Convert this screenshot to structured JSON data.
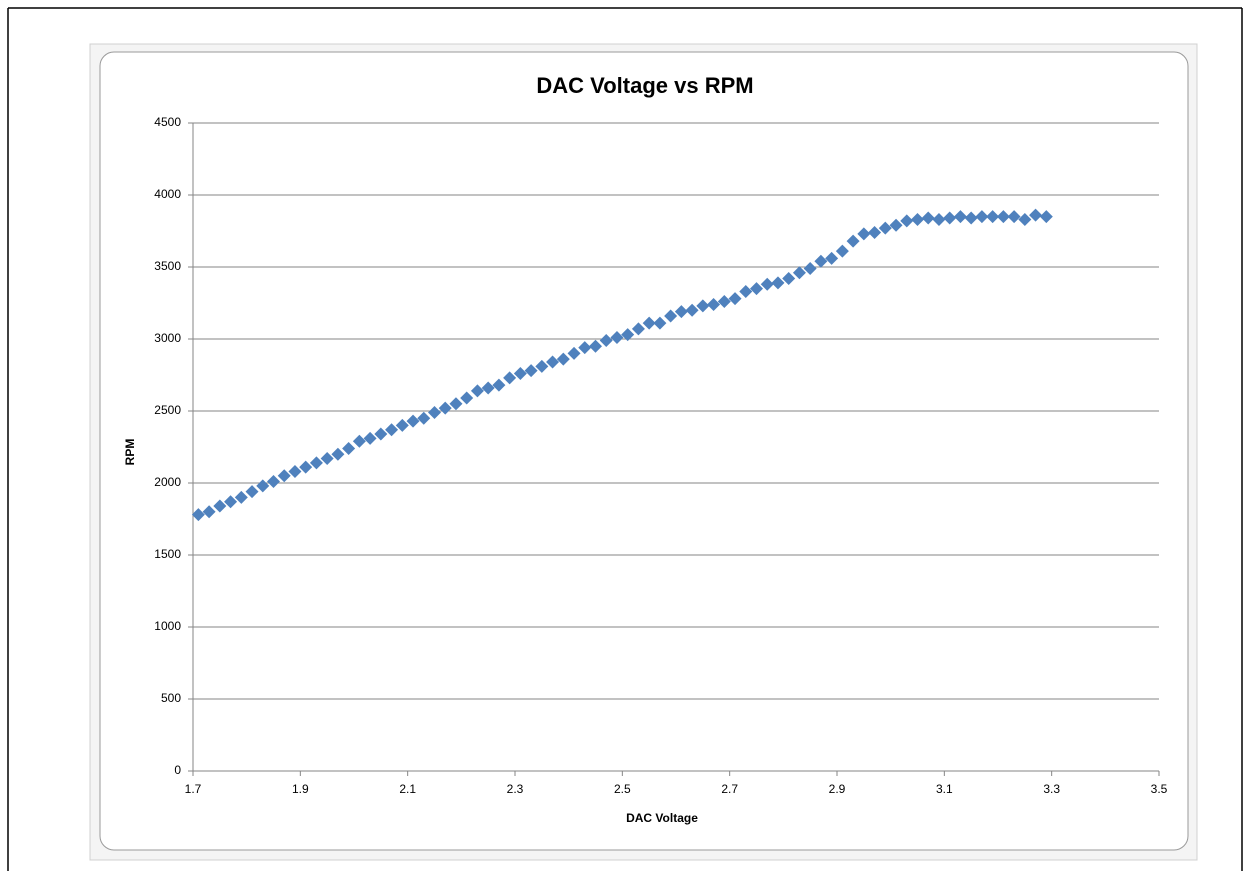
{
  "chart_data": {
    "type": "scatter",
    "title": "DAC Voltage vs RPM",
    "x_label": "DAC Voltage",
    "y_label": "RPM",
    "color": "#4f81bd",
    "grid": true,
    "marker": "diamond",
    "xlim": [
      1.7,
      3.5
    ],
    "xticks": [
      1.7,
      1.9,
      2.1,
      2.3,
      2.5,
      2.7,
      2.9,
      3.1,
      3.3,
      3.5
    ],
    "ylim": [
      0,
      4500
    ],
    "yticks": [
      0,
      500,
      1000,
      1500,
      2000,
      2500,
      3000,
      3500,
      4000,
      4500
    ],
    "x": [
      1.71,
      1.73,
      1.75,
      1.77,
      1.79,
      1.81,
      1.83,
      1.85,
      1.87,
      1.89,
      1.91,
      1.93,
      1.95,
      1.97,
      1.99,
      2.01,
      2.03,
      2.05,
      2.07,
      2.09,
      2.11,
      2.13,
      2.15,
      2.17,
      2.19,
      2.21,
      2.23,
      2.25,
      2.27,
      2.29,
      2.31,
      2.33,
      2.35,
      2.37,
      2.39,
      2.41,
      2.43,
      2.45,
      2.47,
      2.49,
      2.51,
      2.53,
      2.55,
      2.57,
      2.59,
      2.61,
      2.63,
      2.65,
      2.67,
      2.69,
      2.71,
      2.73,
      2.75,
      2.77,
      2.79,
      2.81,
      2.83,
      2.85,
      2.87,
      2.89,
      2.91,
      2.93,
      2.95,
      2.97,
      2.99,
      3.01,
      3.03,
      3.05,
      3.07,
      3.09,
      3.11,
      3.13,
      3.15,
      3.17,
      3.19,
      3.21,
      3.23,
      3.25,
      3.27,
      3.29
    ],
    "values": [
      1780,
      1800,
      1840,
      1870,
      1900,
      1940,
      1980,
      2010,
      2050,
      2080,
      2110,
      2140,
      2170,
      2200,
      2240,
      2290,
      2310,
      2340,
      2370,
      2400,
      2430,
      2450,
      2490,
      2520,
      2550,
      2590,
      2640,
      2660,
      2680,
      2730,
      2760,
      2780,
      2810,
      2840,
      2860,
      2900,
      2940,
      2950,
      2990,
      3010,
      3030,
      3070,
      3110,
      3110,
      3160,
      3190,
      3200,
      3230,
      3240,
      3260,
      3280,
      3330,
      3350,
      3380,
      3390,
      3420,
      3460,
      3490,
      3540,
      3560,
      3610,
      3680,
      3730,
      3740,
      3770,
      3790,
      3820,
      3830,
      3840,
      3830,
      3840,
      3850,
      3840,
      3850,
      3850,
      3850,
      3850,
      3830,
      3860,
      3850
    ]
  }
}
